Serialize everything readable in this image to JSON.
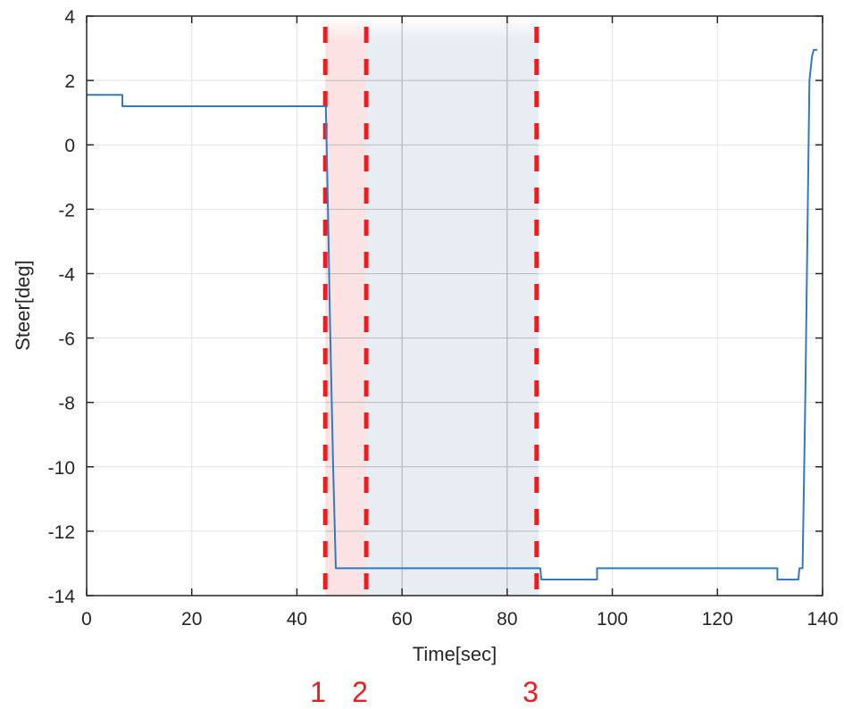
{
  "chart_data": {
    "type": "line",
    "title": "",
    "xlabel": "Time[sec]",
    "ylabel": "Steer[deg]",
    "xlim": [
      0,
      140
    ],
    "ylim": [
      -14,
      4
    ],
    "xticks": [
      0,
      20,
      40,
      60,
      80,
      100,
      120,
      140
    ],
    "yticks": [
      4,
      2,
      0,
      -2,
      -4,
      -6,
      -8,
      -10,
      -12,
      -14
    ],
    "grid": true,
    "legend": null,
    "series": [
      {
        "name": "Steer",
        "color": "#2f7bc4",
        "x": [
          0,
          6.8,
          6.8,
          45.5,
          45.9,
          46.3,
          46.9,
          47.4,
          85.9,
          86.3,
          86.5,
          97.1,
          97.1,
          131.4,
          131.4,
          135.4,
          135.6,
          136.2,
          136.7,
          137.5,
          137.9,
          138.0,
          138.3,
          139.0
        ],
        "y": [
          1.55,
          1.55,
          1.2,
          1.2,
          -2.0,
          -5.5,
          -10.0,
          -13.15,
          -13.15,
          -13.15,
          -13.5,
          -13.5,
          -13.15,
          -13.15,
          -13.5,
          -13.5,
          -13.15,
          -13.15,
          -8.0,
          2.0,
          2.6,
          2.75,
          2.95,
          2.95
        ]
      }
    ],
    "vertical_markers": [
      {
        "label": "1",
        "x": 45.4,
        "color": "#ee1c1c",
        "style": "dashed"
      },
      {
        "label": "2",
        "x": 53.2,
        "color": "#ee1c1c",
        "style": "dashed"
      },
      {
        "label": "3",
        "x": 85.6,
        "color": "#ee1c1c",
        "style": "dashed"
      }
    ],
    "shaded_regions": [
      {
        "x_start": 45.4,
        "x_end": 53.2,
        "color": "#fbe3e3"
      },
      {
        "x_start": 53.2,
        "x_end": 86.0,
        "color": "#e8ecf3"
      }
    ]
  },
  "labels": {
    "x_axis": "Time[sec]",
    "y_axis": "Steer[deg]",
    "marker_1": "1",
    "marker_2": "2",
    "marker_3": "3"
  }
}
